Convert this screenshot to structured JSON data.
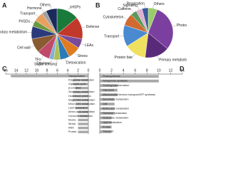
{
  "chart_data": [
    {
      "type": "pie",
      "panel": "A",
      "categories": [
        "sHSPs",
        "Defense",
        "LEAs",
        "Stress",
        "Detoxication",
        "Sugar sensing",
        "Ethylene",
        "TFs",
        "Cell wall",
        "Secondary metabolism",
        "PrlSDs",
        "Transport",
        "Hormone",
        "Others"
      ],
      "values": [
        14,
        14,
        6,
        8,
        6,
        4,
        3,
        8,
        9,
        8,
        4,
        6,
        3,
        7
      ],
      "colors": [
        "#1a7a3a",
        "#c0392b",
        "#7a4a9a",
        "#e07b20",
        "#2a7ab8",
        "#b0c050",
        "#7fb0d8",
        "#c04a6a",
        "#8a5a30",
        "#2a3a7a",
        "#6a9a40",
        "#e8a060",
        "#a0a0a0",
        "#1a2a5a"
      ]
    },
    {
      "type": "pie",
      "panel": "B",
      "categories": [
        "Others",
        "Photosynthesis",
        "Primary metabolism",
        "Protein fate",
        "Transport",
        "Cytoskeleton",
        "Caffeine",
        "Signaling",
        "Respiration"
      ],
      "values": [
        6,
        30,
        16,
        14,
        14,
        8,
        4,
        4,
        4
      ],
      "colors": [
        "#9acd6a",
        "#7b3fa0",
        "#5a2a7a",
        "#f0e060",
        "#4a8ad0",
        "#d06a30",
        "#5a9a5a",
        "#e0b0d0",
        "#3a5a9a"
      ]
    },
    {
      "type": "barh",
      "panel": "C",
      "xreverse": true,
      "color": "#a8a8a8",
      "categories": [
        "Transportation",
        "Polyamine metabolism",
        "Glycolytic cycle",
        "β-oxidation",
        "Secondary metabolism",
        "Heat shock proteins",
        "Major CHO metabolism",
        "Minor CHO metabolism",
        "Lipid metabolism",
        "Amino acid metabolism",
        "Hormone metabolism",
        "Redox",
        "Stress",
        "RNA",
        "Protein"
      ],
      "values": [
        15,
        3,
        3,
        2.5,
        3,
        3,
        3,
        2.5,
        2.5,
        2,
        2,
        2,
        2,
        2,
        2
      ],
      "xlim": [
        0,
        16
      ],
      "xticks": [
        16,
        14,
        12,
        10,
        8,
        6,
        4,
        2,
        0
      ]
    },
    {
      "type": "barh",
      "panel": "D",
      "xreverse": false,
      "color": "#a8a8a8",
      "categories": [
        "Photosynthesis",
        "Tetrapyrrole synthesis",
        "TCA/org transformation",
        "Glycolysis",
        "Mitochondrial electron transport/ATP synthesis",
        "Secondary metabolism",
        "Cell",
        "Amino acid metabolism",
        "Hormone metabolism",
        "Nucleotide metabolism",
        "Lipid metabolism",
        "Protein",
        "Transport"
      ],
      "values": [
        10,
        10,
        3,
        3,
        3,
        2.5,
        2.5,
        2.5,
        2.5,
        2,
        2,
        2,
        2
      ],
      "xlim": [
        0,
        14
      ],
      "xticks": [
        0,
        2,
        4,
        6,
        8,
        10,
        12,
        14
      ]
    }
  ]
}
